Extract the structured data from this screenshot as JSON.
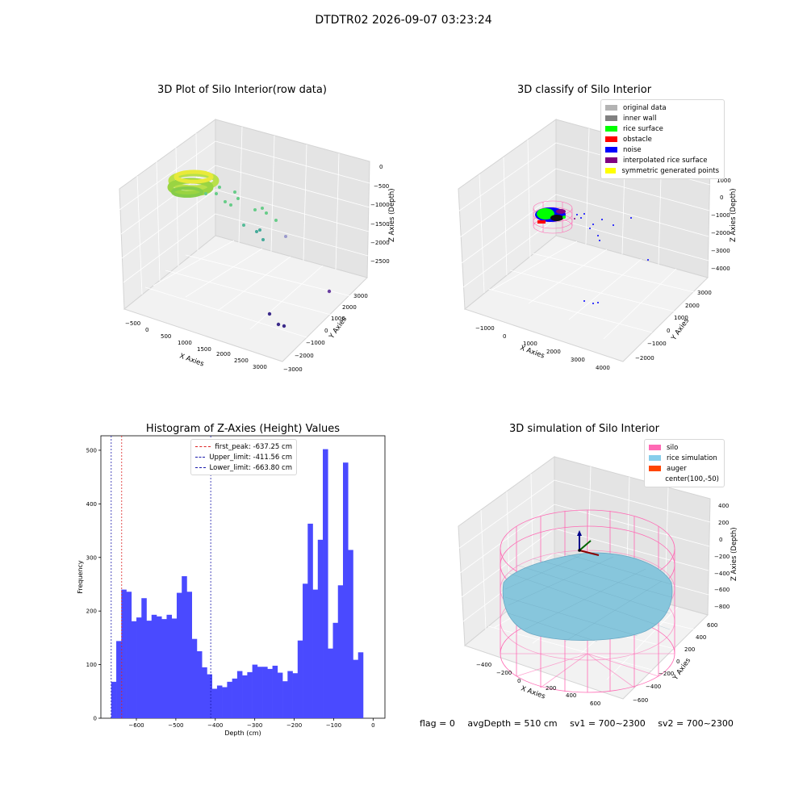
{
  "suptitle": "DTDTR02 2026-09-07 03:23:24",
  "colors": {
    "hist": "#4a4aff",
    "first_peak": "#dd2222",
    "limits": "#1a1aaa",
    "pane_left": "#ececec",
    "pane_right": "#e4e4e4",
    "pane_floor": "#f2f2f2",
    "silo": "#ff69b4",
    "rice": "#87c6dc",
    "auger": "#ff4500"
  },
  "chart_data": [
    {
      "type": "scatter3d",
      "title": "3D Plot of Silo Interior(row data)",
      "xlabel": "X Axies",
      "ylabel": "Y Axies",
      "zlabel": "Z Axies (Depth)",
      "x_ticks": [
        "−500",
        "0",
        "500",
        "1000",
        "1500",
        "2000",
        "2500",
        "3000"
      ],
      "y_ticks": [
        "3000",
        "2000",
        "1000",
        "0",
        "−1000",
        "−2000",
        "−3000"
      ],
      "z_ticks": [
        "0",
        "−500",
        "−1000",
        "−1500",
        "−2000",
        "−2500"
      ],
      "points_note": "dense yellow-green ring cluster near x≈0, y≈2000, z≈-500; sparse green/teal points; 4 purple points near x≈2500–3000, y≈-2000"
    },
    {
      "type": "scatter3d",
      "title": "3D classify of Silo Interior",
      "xlabel": "X Axies",
      "ylabel": "Y Axies",
      "zlabel": "Z Axies (Depth)",
      "x_ticks": [
        "−1000",
        "0",
        "1000",
        "2000",
        "3000",
        "4000"
      ],
      "y_ticks": [
        "3000",
        "2000",
        "1000",
        "0",
        "−1000",
        "−2000"
      ],
      "z_ticks": [
        "1000",
        "0",
        "−1000",
        "−2000",
        "−3000",
        "−4000"
      ],
      "legend": [
        {
          "label": "original data",
          "color": "#b3b3b3"
        },
        {
          "label": "inner wall",
          "color": "#808080"
        },
        {
          "label": "rice surface",
          "color": "#00ff00"
        },
        {
          "label": "obstacle",
          "color": "#ff0000"
        },
        {
          "label": "noise",
          "color": "#0000ff"
        },
        {
          "label": "interpolated rice surface",
          "color": "#800080"
        },
        {
          "label": "symmetric generated points",
          "color": "#ffff00"
        }
      ]
    },
    {
      "type": "bar",
      "title": "Histogram of Z-Axies (Height) Values",
      "xlabel": "Depth (cm)",
      "ylabel": "Frequency",
      "xlim": [
        -690,
        30
      ],
      "ylim": [
        0,
        527
      ],
      "x_ticks": [
        -600,
        -500,
        -400,
        -300,
        -200,
        -100,
        0
      ],
      "x_tick_labels": [
        "−600",
        "−500",
        "−400",
        "−300",
        "−200",
        "−100",
        "0"
      ],
      "y_ticks": [
        0,
        100,
        200,
        300,
        400,
        500
      ],
      "bin_start": -663.8,
      "bin_width": 12.77,
      "values": [
        68,
        144,
        240,
        236,
        181,
        188,
        224,
        182,
        193,
        190,
        185,
        193,
        186,
        234,
        265,
        236,
        148,
        125,
        95,
        82,
        55,
        61,
        58,
        68,
        74,
        88,
        80,
        86,
        100,
        96,
        96,
        92,
        98,
        85,
        69,
        88,
        84,
        145,
        251,
        363,
        240,
        333,
        502,
        130,
        178,
        248,
        477,
        314,
        109,
        123
      ],
      "lines": [
        {
          "label": "first_peak: -637.25 cm",
          "x": -637.25,
          "color": "#dd2222"
        },
        {
          "label": "Upper_limit: -411.56 cm",
          "x": -411.56,
          "color": "#1a1aaa"
        },
        {
          "label": "Lower_limit: -663.80 cm",
          "x": -663.8,
          "color": "#1a1aaa"
        }
      ]
    },
    {
      "type": "surface3d",
      "title": "3D simulation of Silo Interior",
      "xlabel": "X Axies",
      "ylabel": "Y Axies",
      "zlabel": "Z Axies (Depth)",
      "x_ticks": [
        "−400",
        "−200",
        "0",
        "200",
        "400",
        "600"
      ],
      "y_ticks": [
        "600",
        "400",
        "200",
        "0",
        "−200",
        "−400",
        "−600"
      ],
      "z_ticks": [
        "400",
        "200",
        "0",
        "−200",
        "−400",
        "−600",
        "−800"
      ],
      "legend": [
        {
          "label": "silo",
          "color": "#ff69b4"
        },
        {
          "label": "rice simulation",
          "color": "#87ceeb"
        },
        {
          "label": "auger",
          "color": "#ff4500"
        },
        {
          "label": "center(100,-50)",
          "color": ""
        }
      ]
    }
  ],
  "footer": {
    "flag": "flag = 0",
    "avg": "avgDepth = 510 cm",
    "sv1": "sv1 = 700~2300",
    "sv2": "sv2 = 700~2300"
  }
}
